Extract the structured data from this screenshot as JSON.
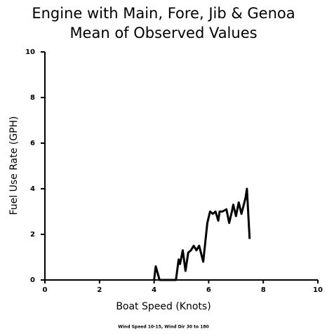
{
  "chart_data": {
    "type": "line",
    "title": "Engine with Main, Fore, Jib & Genoa",
    "subtitle": "Mean of Observed Values",
    "x_label": "Boat Speed (Knots)",
    "y_label": "Fuel Use Rate (GPH)",
    "note": "Wind Speed 10-15, Wind Dir 30 to 180",
    "color": "#000000",
    "x": [
      4.0,
      4.06,
      4.2,
      4.8,
      4.9,
      4.95,
      5.05,
      5.15,
      5.25,
      5.35,
      5.45,
      5.55,
      5.65,
      5.8,
      5.95,
      6.05,
      6.15,
      6.25,
      6.35,
      6.4,
      6.5,
      6.65,
      6.75,
      6.85,
      6.9,
      7.0,
      7.1,
      7.2,
      7.35,
      7.4,
      7.5
    ],
    "values": [
      0,
      0.6,
      0,
      0,
      0.9,
      0.7,
      1.3,
      0.4,
      1.2,
      1.3,
      1.5,
      1.3,
      1.5,
      0.8,
      2.5,
      3.0,
      2.9,
      3.0,
      2.6,
      3.0,
      3.0,
      3.1,
      2.5,
      3.0,
      3.3,
      2.8,
      3.4,
      2.9,
      3.6,
      4.0,
      1.8
    ],
    "xlim": [
      0,
      10
    ],
    "xticks": [
      0,
      2,
      4,
      6,
      8,
      10
    ],
    "ylim": [
      0,
      10
    ],
    "yticks": [
      0,
      2,
      4,
      6,
      8,
      10
    ],
    "grid": false
  }
}
